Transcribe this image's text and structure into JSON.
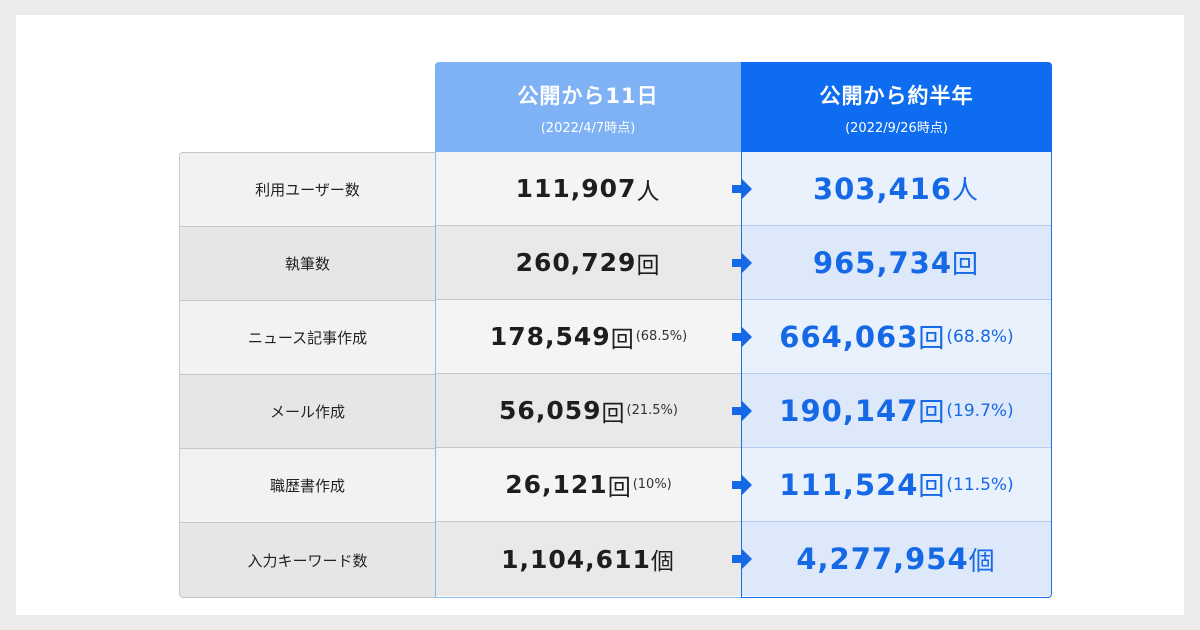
{
  "columns": [
    {
      "title": "公開から11日",
      "subtitle": "(2022/4/7時点)",
      "color": "#7fb1f5"
    },
    {
      "title": "公開から約半年",
      "subtitle": "(2022/9/26時点)",
      "color": "#0d6cf0"
    }
  ],
  "rows": [
    {
      "label": "利用ユーザー数",
      "v1": "111,907",
      "u1": "人",
      "p1": "",
      "v2": "303,416",
      "u2": "人",
      "p2": ""
    },
    {
      "label": "執筆数",
      "v1": "260,729",
      "u1": "回",
      "p1": "",
      "v2": "965,734",
      "u2": "回",
      "p2": ""
    },
    {
      "label": "ニュース記事作成",
      "v1": "178,549",
      "u1": "回",
      "p1": "(68.5%)",
      "v2": "664,063",
      "u2": "回",
      "p2": "(68.8%)"
    },
    {
      "label": "メール作成",
      "v1": "56,059",
      "u1": "回",
      "p1": "(21.5%)",
      "v2": "190,147",
      "u2": "回",
      "p2": "(19.7%)"
    },
    {
      "label": "職歴書作成",
      "v1": "26,121",
      "u1": "回",
      "p1": "(10%)",
      "v2": "111,524",
      "u2": "回",
      "p2": "(11.5%)"
    },
    {
      "label": "入力キーワード数",
      "v1": "1,104,611",
      "u1": "個",
      "p1": "",
      "v2": "4,277,954",
      "u2": "個",
      "p2": ""
    }
  ],
  "arrow_icon": "arrow-right-icon",
  "accent_color": "#1669e6"
}
